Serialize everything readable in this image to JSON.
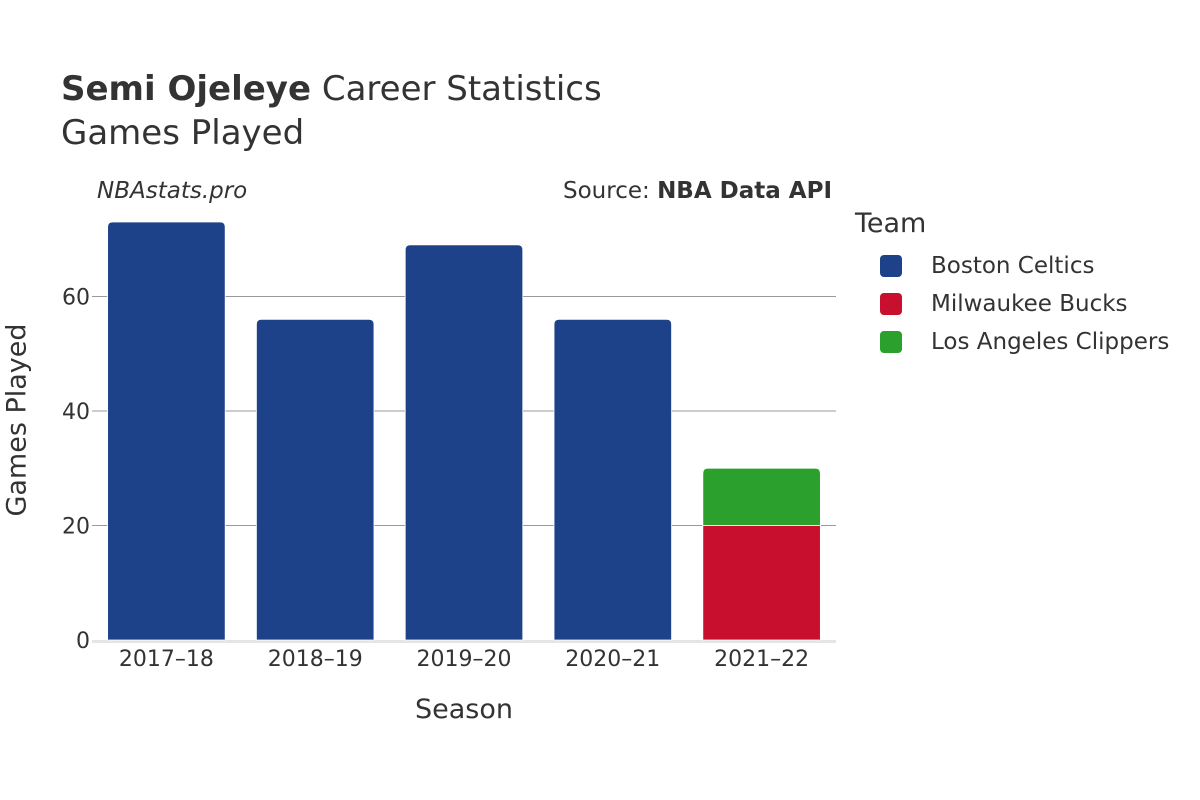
{
  "header": {
    "title_name": "Semi Ojeleye",
    "title_rest": " Career Statistics",
    "subtitle": "Games Played",
    "watermark": "NBAstats.pro",
    "source_prefix": "Source: ",
    "source_name": "NBA Data API"
  },
  "legend": {
    "title": "Team",
    "items": [
      {
        "label": "Boston Celtics",
        "color": "#1d428a"
      },
      {
        "label": "Milwaukee Bucks",
        "color": "#c8102e"
      },
      {
        "label": "Los Angeles Clippers",
        "color": "#2ca02c"
      }
    ]
  },
  "chart_data": {
    "type": "bar",
    "stacked": true,
    "xlabel": "Season",
    "ylabel": "Games Played",
    "categories": [
      "2017–18",
      "2018–19",
      "2019–20",
      "2020–21",
      "2021–22"
    ],
    "series": [
      {
        "name": "Boston Celtics",
        "color": "#1d428a",
        "values": [
          73,
          56,
          69,
          56,
          0
        ]
      },
      {
        "name": "Milwaukee Bucks",
        "color": "#c8102e",
        "values": [
          0,
          0,
          0,
          0,
          20
        ]
      },
      {
        "name": "Los Angeles Clippers",
        "color": "#2ca02c",
        "values": [
          0,
          0,
          0,
          0,
          10
        ]
      }
    ],
    "ylim": [
      0,
      73
    ],
    "yticks": [
      0,
      20,
      40,
      60
    ],
    "grid": true,
    "legend_position": "right"
  }
}
